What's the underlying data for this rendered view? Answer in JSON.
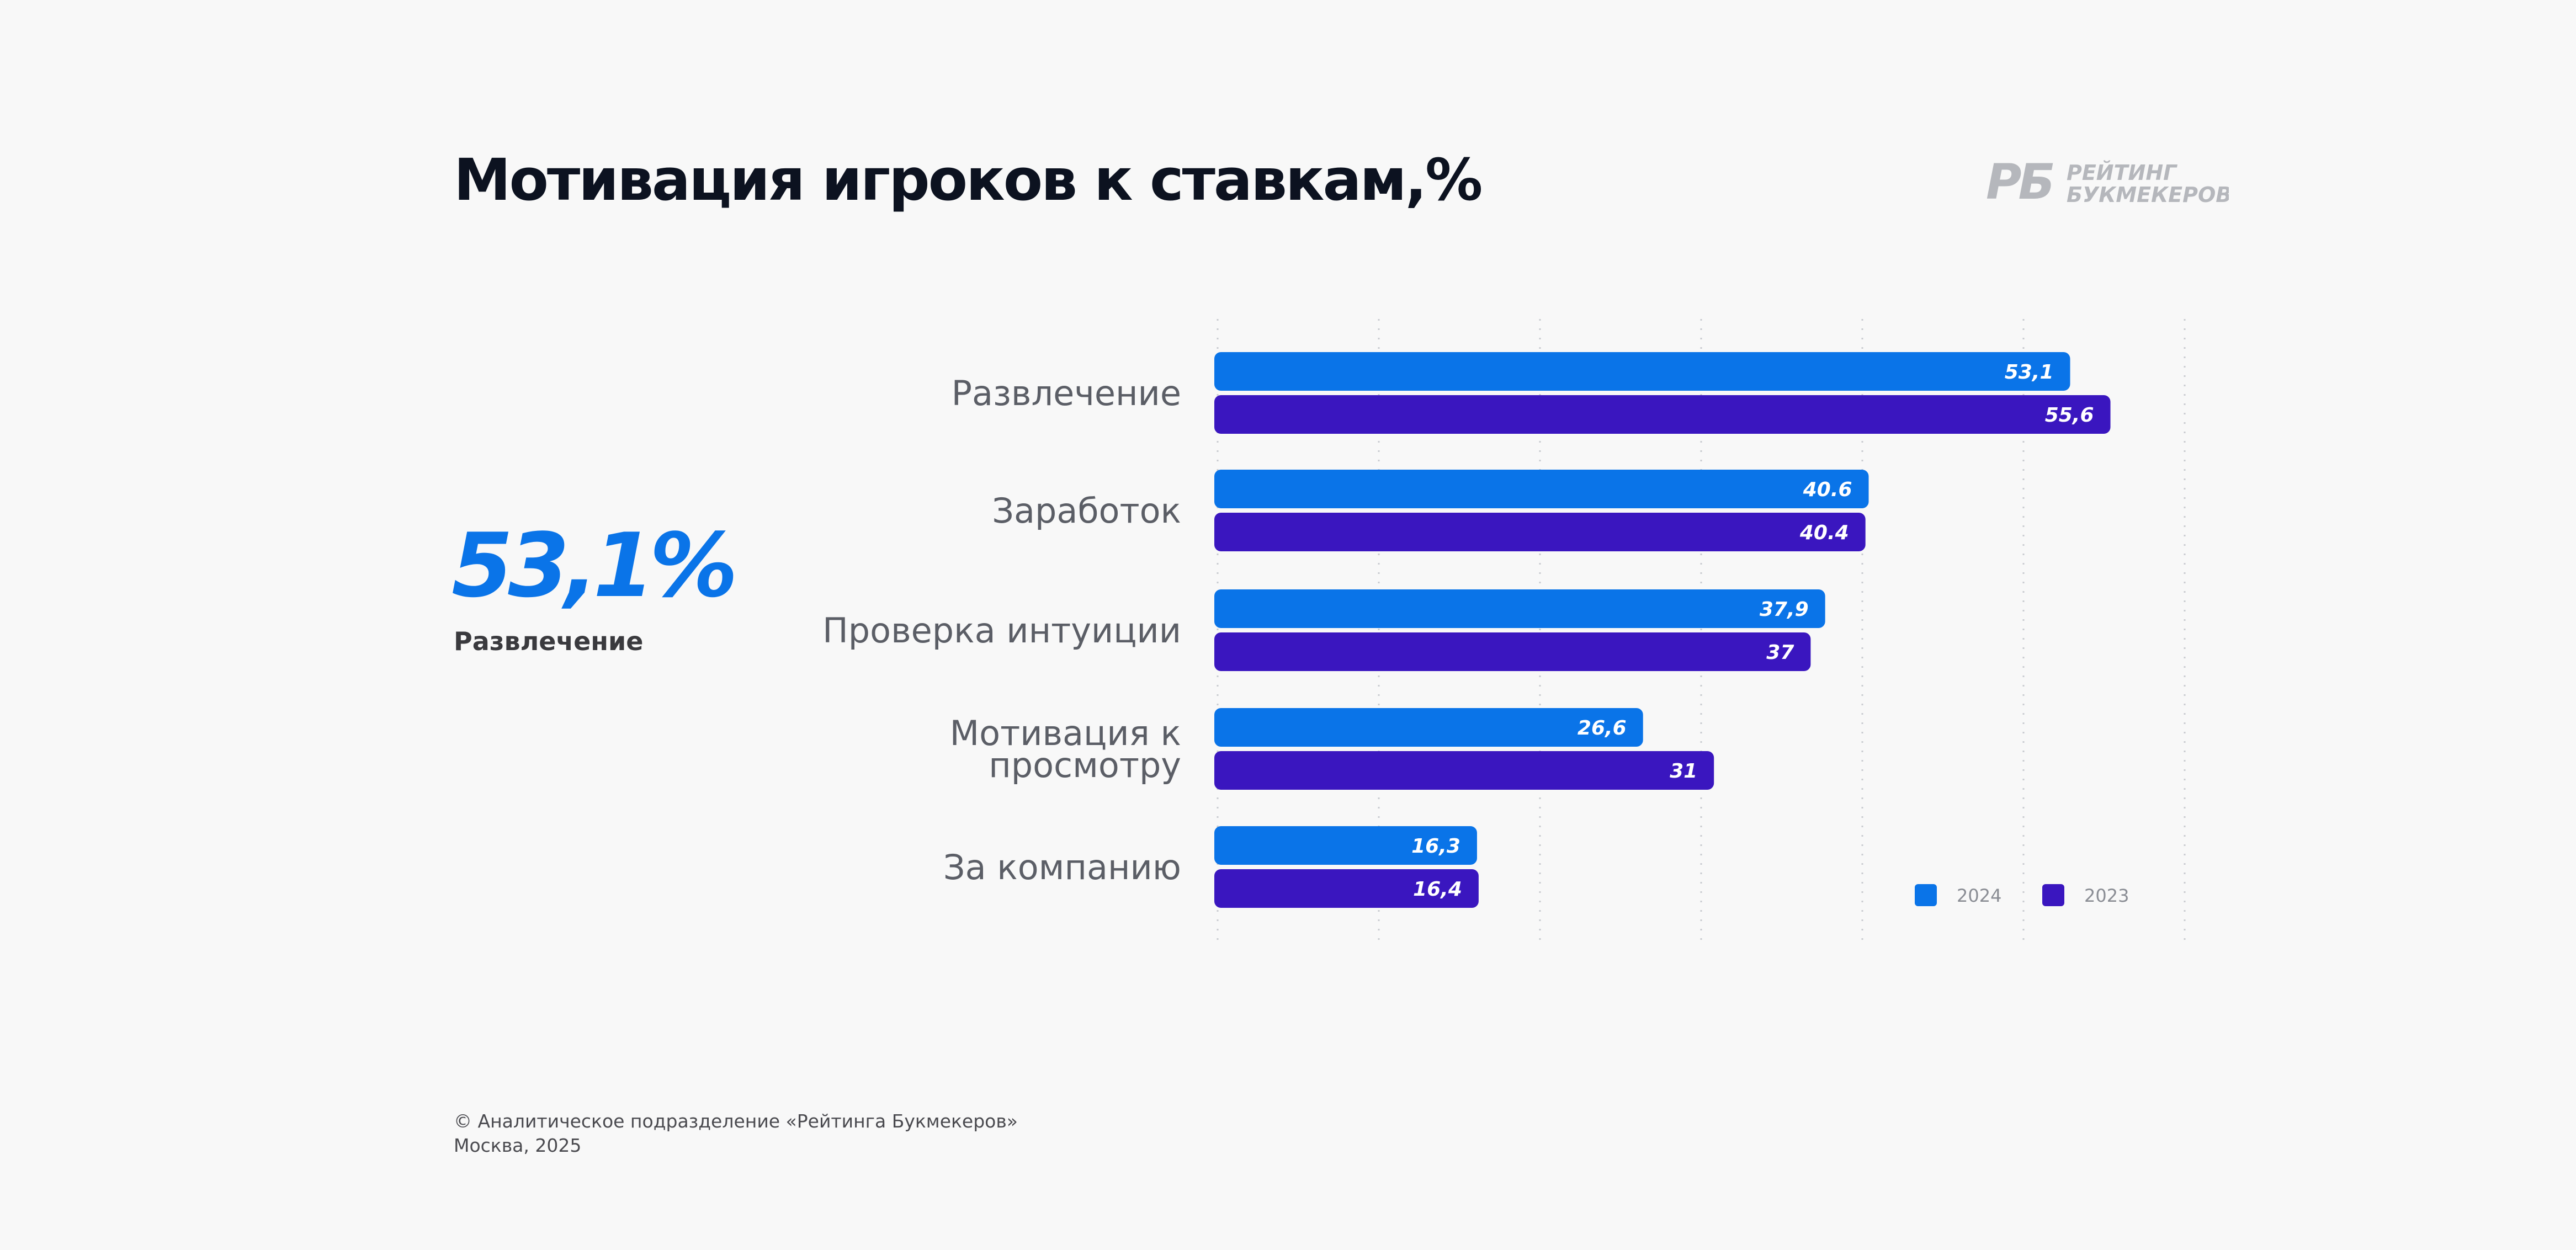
{
  "header": {
    "title": "Мотивация игроков к ставкам,%",
    "logo_text_line1": "РЕЙТИНГ",
    "logo_text_line2": "БУКМЕКЕРОВ",
    "logo_mark": "РБ"
  },
  "highlight": {
    "value": "53,1%",
    "label": "Развлечение"
  },
  "colors": {
    "series_2024": "#0a74e8",
    "series_2023": "#3a16bf",
    "grid": "#c9cbd0",
    "category_text": "#5b5e66",
    "logo": "#b5b7bc"
  },
  "chart_data": {
    "type": "bar",
    "orientation": "horizontal",
    "categories": [
      [
        "Развлечение"
      ],
      [
        "Заработок"
      ],
      [
        "Проверка интуиции"
      ],
      [
        "Мотивация к",
        "просмотру"
      ],
      [
        "За компанию"
      ]
    ],
    "series": [
      {
        "name": "2024",
        "values": [
          53.1,
          40.6,
          37.9,
          26.6,
          16.3
        ],
        "labels": [
          "53,1",
          "40.6",
          "37,9",
          "26,6",
          "16,3"
        ]
      },
      {
        "name": "2023",
        "values": [
          55.6,
          40.4,
          37,
          31,
          16.4
        ],
        "labels": [
          "55,6",
          "40.4",
          "37",
          "31",
          "16,4"
        ]
      }
    ],
    "xlim": [
      0,
      60
    ],
    "grid": true,
    "legend_position": "bottom-right"
  },
  "footer": {
    "line1": "© Аналитическое подразделение «Рейтинга Букмекеров»",
    "line2": "Москва, 2025"
  }
}
